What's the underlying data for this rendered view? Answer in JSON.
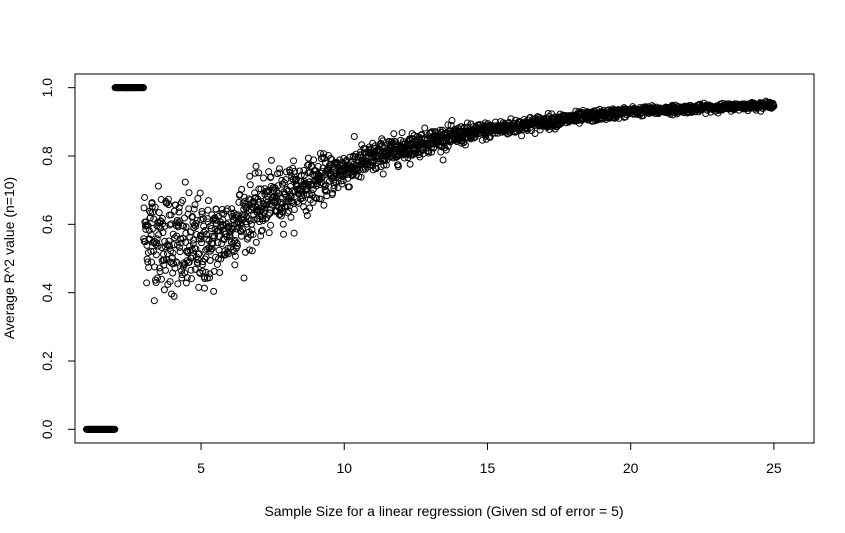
{
  "chart_data": {
    "type": "scatter",
    "title": "",
    "xlabel": "Sample Size for a linear regression (Given sd of error = 5)",
    "ylabel": "Average R^2 value (n=10)",
    "xlim": [
      0.6,
      26.4
    ],
    "ylim": [
      -0.04,
      1.04
    ],
    "x_ticks": [
      "5",
      "10",
      "15",
      "20",
      "25"
    ],
    "y_ticks": [
      "0.0",
      "0.2",
      "0.4",
      "0.6",
      "0.8",
      "1.0"
    ],
    "marker": "open-circle",
    "point_color": "#000000",
    "grid": false,
    "legend": "none",
    "x_step": 0.01,
    "segments": [
      {
        "x_from": 1.0,
        "x_to": 1.99,
        "pattern": "constant",
        "value": 0.0
      },
      {
        "x_from": 2.0,
        "x_to": 2.99,
        "pattern": "constant",
        "value": 1.0
      },
      {
        "x_from": 3.0,
        "x_to": 25.0,
        "pattern": "noisy-curve",
        "trend_points": [
          [
            3.0,
            0.58
          ],
          [
            4.5,
            0.53
          ],
          [
            5.5,
            0.55
          ],
          [
            6.5,
            0.62
          ],
          [
            7.5,
            0.67
          ],
          [
            8.5,
            0.71
          ],
          [
            10,
            0.76
          ],
          [
            11.5,
            0.81
          ],
          [
            13,
            0.845
          ],
          [
            15,
            0.875
          ],
          [
            17,
            0.9
          ],
          [
            20,
            0.93
          ],
          [
            22.5,
            0.94
          ],
          [
            25,
            0.95
          ]
        ],
        "spread_points": [
          [
            3.0,
            0.13
          ],
          [
            4.5,
            0.14
          ],
          [
            6.0,
            0.1
          ],
          [
            8.0,
            0.07
          ],
          [
            10,
            0.05
          ],
          [
            12,
            0.035
          ],
          [
            15,
            0.022
          ],
          [
            20,
            0.012
          ],
          [
            25,
            0.008
          ]
        ]
      }
    ]
  }
}
